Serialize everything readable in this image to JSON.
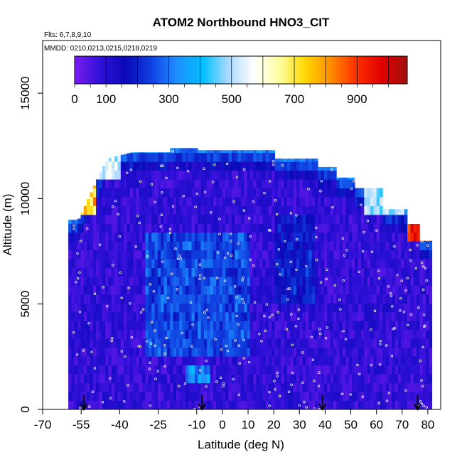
{
  "chart_data": {
    "type": "heatmap",
    "title": "ATOM2 Northbound HNO3_CIT",
    "flights_note": "Flts: 6,7,8,9,10",
    "dates_note": "MMDD: 0210,0213,0215,0218,0219",
    "xlabel": "Latitude (deg N)",
    "ylabel": "Altitude (m)",
    "xlim": [
      -70,
      85
    ],
    "ylim": [
      0,
      17500
    ],
    "x_ticks": [
      -70,
      -55,
      -40,
      -25,
      -10,
      0,
      10,
      20,
      30,
      40,
      50,
      60,
      70,
      80
    ],
    "y_ticks": [
      0,
      5000,
      10000,
      15000
    ],
    "colorbar": {
      "range": [
        0,
        1060
      ],
      "ticks": [
        0,
        100,
        300,
        500,
        700,
        900
      ],
      "colors": [
        "#7a1cf0",
        "#3010d8",
        "#0a0ab8",
        "#1040e0",
        "#1e90ff",
        "#00bfff",
        "#aad8ff",
        "#ffffff",
        "#ffffa0",
        "#ffd700",
        "#ff8c00",
        "#ff3000",
        "#e00000",
        "#a01010"
      ]
    },
    "flight_arrows_lat": [
      -54,
      -8,
      39,
      76
    ],
    "grid": false,
    "legend": "none"
  }
}
